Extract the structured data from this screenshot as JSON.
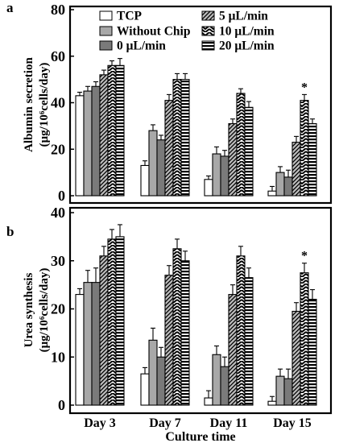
{
  "figure": {
    "xlabel": "Culture time",
    "categories": [
      "Day 3",
      "Day 7",
      "Day 11",
      "Day 15"
    ],
    "legend": [
      "TCP",
      "Without Chip",
      "0 μL/min",
      "5 μL/min",
      "10 μL/min",
      "20 μL/min"
    ]
  },
  "chart_data": [
    {
      "type": "bar",
      "panel_label": "a",
      "ylabel": [
        "Albumin secretion",
        "(μg/10⁶cells/day)"
      ],
      "ylim": [
        0,
        80
      ],
      "yticks": [
        0,
        20,
        40,
        60,
        80
      ],
      "categories": [
        "Day 3",
        "Day 7",
        "Day 11",
        "Day 15"
      ],
      "legend_position": "top-right",
      "series": [
        {
          "name": "TCP",
          "values": [
            43,
            13,
            7,
            2
          ],
          "errors": [
            1.5,
            2,
            1.5,
            2
          ]
        },
        {
          "name": "Without Chip",
          "values": [
            45,
            28,
            18,
            10
          ],
          "errors": [
            2,
            2.5,
            3,
            2.5
          ]
        },
        {
          "name": "0 μL/min",
          "values": [
            47,
            24,
            17,
            8
          ],
          "errors": [
            2,
            2,
            2.5,
            3
          ]
        },
        {
          "name": "5 μL/min",
          "values": [
            52,
            41,
            31,
            23
          ],
          "errors": [
            2,
            2.5,
            2,
            2.5
          ]
        },
        {
          "name": "10 μL/min",
          "values": [
            56,
            50,
            44,
            41
          ],
          "errors": [
            2,
            2.5,
            2,
            2.5
          ]
        },
        {
          "name": "20 μL/min",
          "values": [
            56,
            50,
            38,
            31
          ],
          "errors": [
            3,
            2.5,
            2.5,
            2
          ]
        }
      ],
      "annotations": [
        {
          "category": "Day 15",
          "series": "10 μL/min",
          "text": "*"
        }
      ]
    },
    {
      "type": "bar",
      "panel_label": "b",
      "ylabel": [
        "Urea synthesis",
        "(μg/10⁶cells/day)"
      ],
      "ylim": [
        0,
        40
      ],
      "yticks": [
        0,
        10,
        20,
        30,
        40
      ],
      "categories": [
        "Day 3",
        "Day 7",
        "Day 11",
        "Day 15"
      ],
      "series": [
        {
          "name": "TCP",
          "values": [
            23,
            6.5,
            1.5,
            0.8
          ],
          "errors": [
            1.2,
            1.3,
            1.5,
            1
          ]
        },
        {
          "name": "Without Chip",
          "values": [
            25.5,
            13.5,
            10.5,
            6
          ],
          "errors": [
            2.5,
            2.5,
            1.8,
            1.5
          ]
        },
        {
          "name": "0 μL/min",
          "values": [
            25.5,
            10,
            8,
            5.5
          ],
          "errors": [
            3,
            2,
            2,
            2
          ]
        },
        {
          "name": "5 μL/min",
          "values": [
            31,
            27,
            23,
            19.5
          ],
          "errors": [
            2,
            2,
            2,
            1.8
          ]
        },
        {
          "name": "10 μL/min",
          "values": [
            34.5,
            32.5,
            31,
            27.5
          ],
          "errors": [
            2,
            2,
            2,
            2
          ]
        },
        {
          "name": "20 μL/min",
          "values": [
            35,
            30,
            26.5,
            22
          ],
          "errors": [
            2.5,
            2,
            2,
            2
          ]
        }
      ],
      "annotations": [
        {
          "category": "Day 15",
          "series": "10 μL/min",
          "text": "*"
        }
      ]
    }
  ]
}
